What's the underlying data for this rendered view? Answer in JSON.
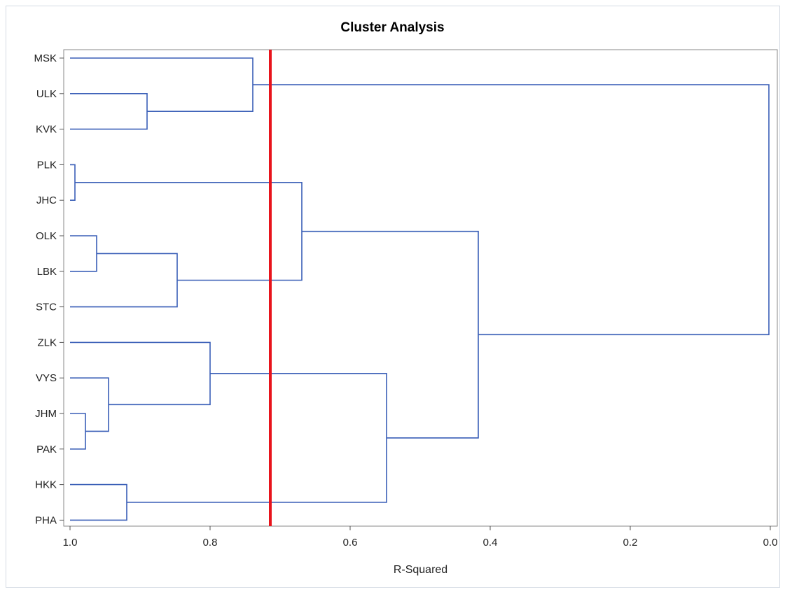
{
  "chart_data": {
    "type": "dendrogram",
    "title": "Cluster Analysis",
    "xlabel": "R-Squared",
    "ylabel": "",
    "xlim": [
      1.0,
      0.0
    ],
    "x_ticks": [
      "1.0",
      "0.8",
      "0.6",
      "0.4",
      "0.2",
      "0.0"
    ],
    "leaves": [
      "MSK",
      "ULK",
      "KVK",
      "PLK",
      "JHC",
      "OLK",
      "LBK",
      "STC",
      "ZLK",
      "VYS",
      "JHM",
      "PAK",
      "HKK",
      "PHA"
    ],
    "merges": [
      {
        "left": "PLK",
        "right": "JHC",
        "r_squared": 0.993
      },
      {
        "left": "JHM",
        "right": "PAK",
        "r_squared": 0.978
      },
      {
        "left": "OLK",
        "right": "LBK",
        "r_squared": 0.962
      },
      {
        "left": "VYS",
        "right": "JHM+PAK",
        "r_squared": 0.945
      },
      {
        "left": "HKK",
        "right": "PHA",
        "r_squared": 0.919
      },
      {
        "left": "ULK",
        "right": "KVK",
        "r_squared": 0.89
      },
      {
        "left": "OLK+LBK",
        "right": "STC",
        "r_squared": 0.847
      },
      {
        "left": "ZLK",
        "right": "VYS+JHM+PAK",
        "r_squared": 0.8
      },
      {
        "left": "MSK",
        "right": "ULK+KVK",
        "r_squared": 0.739
      },
      {
        "left": "PLK+JHC",
        "right": "OLK+LBK+STC",
        "r_squared": 0.669
      },
      {
        "left": "ZLK+VYS+JHM+PAK",
        "right": "HKK+PHA",
        "r_squared": 0.548
      },
      {
        "left": "PLK+JHC+OLK+LBK+STC",
        "right": "ZLK+VYS+JHM+PAK+HKK+PHA",
        "r_squared": 0.417
      },
      {
        "left": "MSK+ULK+KVK",
        "right": "rest",
        "r_squared": 0.002
      }
    ],
    "cut_line": {
      "r_squared": 0.714,
      "color": "#e8141c"
    },
    "link_color": "#3a5fb7"
  }
}
